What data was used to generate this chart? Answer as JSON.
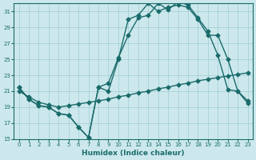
{
  "xlabel": "Humidex (Indice chaleur)",
  "bg_color": "#cce8ec",
  "grid_color": "#9fcdd4",
  "line_color": "#1a6b6b",
  "xlim": [
    -0.5,
    23.5
  ],
  "ylim": [
    15,
    32
  ],
  "xticks": [
    0,
    1,
    2,
    3,
    4,
    5,
    6,
    7,
    8,
    9,
    10,
    11,
    12,
    13,
    14,
    15,
    16,
    17,
    18,
    19,
    20,
    21,
    22,
    23
  ],
  "yticks": [
    15,
    17,
    19,
    21,
    23,
    25,
    27,
    29,
    31
  ],
  "line_a_x": [
    0,
    1,
    2,
    3,
    4,
    5,
    6,
    7,
    8,
    9,
    10,
    11,
    12,
    13,
    14,
    15,
    16,
    17,
    18,
    19,
    20,
    21,
    22,
    23
  ],
  "line_a_y": [
    21.5,
    20.0,
    19.2,
    19.0,
    18.2,
    18.0,
    16.5,
    15.2,
    21.5,
    22.0,
    25.2,
    28.0,
    30.2,
    30.5,
    32.0,
    31.2,
    32.2,
    31.8,
    30.2,
    28.5,
    25.5,
    21.2,
    21.0,
    19.8
  ],
  "line_b_x": [
    0,
    1,
    2,
    3,
    4,
    5,
    6,
    7,
    8,
    9,
    10,
    11,
    12,
    13,
    14,
    15,
    16,
    17,
    18,
    19,
    20,
    21,
    22,
    23
  ],
  "line_b_y": [
    21.5,
    20.0,
    19.2,
    19.0,
    18.2,
    18.0,
    16.5,
    15.2,
    21.5,
    21.0,
    25.0,
    30.0,
    30.5,
    32.0,
    31.0,
    31.5,
    31.8,
    31.5,
    30.0,
    28.0,
    28.0,
    25.0,
    21.0,
    19.5
  ],
  "line_c_x": [
    0,
    1,
    2,
    3,
    4,
    5,
    6,
    7,
    8,
    9,
    10,
    11,
    12,
    13,
    14,
    15,
    16,
    17,
    18,
    19,
    20,
    21,
    22,
    23
  ],
  "line_c_y": [
    21.0,
    20.3,
    19.6,
    19.3,
    19.0,
    19.2,
    19.4,
    19.6,
    19.8,
    20.0,
    20.3,
    20.5,
    20.8,
    21.0,
    21.3,
    21.5,
    21.8,
    22.0,
    22.3,
    22.5,
    22.7,
    22.9,
    23.1,
    23.3
  ],
  "marker": "D",
  "marker_size": 2.5,
  "linewidth": 1.0,
  "xlabel_fontsize": 6.5
}
